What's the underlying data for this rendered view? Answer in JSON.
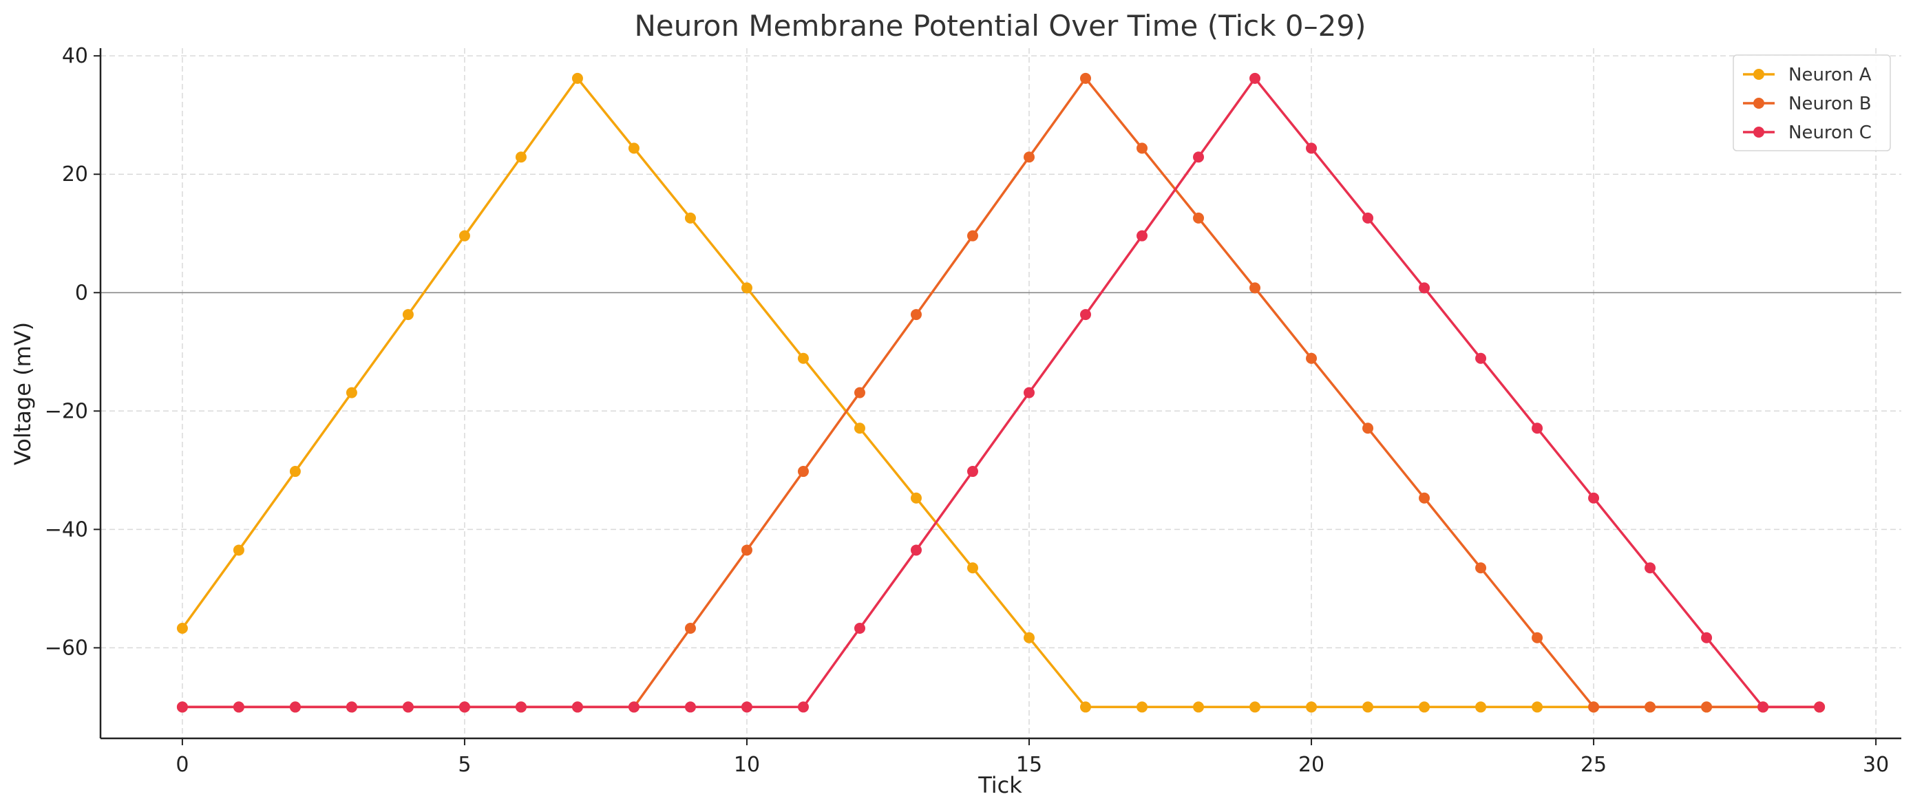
{
  "chart_data": {
    "type": "line",
    "title": "Neuron Membrane Potential Over Time (Tick 0–29)",
    "xlabel": "Tick",
    "ylabel": "Voltage (mV)",
    "xlim": [
      -1.45,
      30.45
    ],
    "ylim": [
      -75.3,
      41.3
    ],
    "x_ticks": [
      0,
      5,
      10,
      15,
      20,
      25,
      30
    ],
    "y_ticks": [
      -60,
      -40,
      -20,
      0,
      20,
      40
    ],
    "x_tick_labels": [
      "0",
      "5",
      "10",
      "15",
      "20",
      "25",
      "30"
    ],
    "y_tick_labels": [
      "−60",
      "−40",
      "−20",
      "0",
      "20",
      "40"
    ],
    "grid": true,
    "zero_line": true,
    "legend_position": "top-right",
    "x": [
      0,
      1,
      2,
      3,
      4,
      5,
      6,
      7,
      8,
      9,
      10,
      11,
      12,
      13,
      14,
      15,
      16,
      17,
      18,
      19,
      20,
      21,
      22,
      23,
      24,
      25,
      26,
      27,
      28,
      29
    ],
    "series": [
      {
        "name": "Neuron A",
        "color": "#f5a50c",
        "values": [
          -56.7,
          -43.5,
          -30.2,
          -16.9,
          -3.7,
          9.6,
          22.9,
          36.2,
          24.4,
          12.6,
          0.8,
          -11.1,
          -22.9,
          -34.7,
          -46.5,
          -58.3,
          -70,
          -70,
          -70,
          -70,
          -70,
          -70,
          -70,
          -70,
          -70,
          -70,
          -70,
          -70,
          -70,
          -70
        ]
      },
      {
        "name": "Neuron B",
        "color": "#eb6424",
        "values": [
          -70,
          -70,
          -70,
          -70,
          -70,
          -70,
          -70,
          -70,
          -70,
          -56.7,
          -43.5,
          -30.2,
          -16.9,
          -3.7,
          9.6,
          22.9,
          36.2,
          24.4,
          12.6,
          0.8,
          -11.1,
          -22.9,
          -34.7,
          -46.5,
          -58.3,
          -70,
          -70,
          -70,
          -70,
          -70
        ]
      },
      {
        "name": "Neuron C",
        "color": "#e8304f",
        "values": [
          -70,
          -70,
          -70,
          -70,
          -70,
          -70,
          -70,
          -70,
          -70,
          -70,
          -70,
          -70,
          -56.7,
          -43.5,
          -30.2,
          -16.9,
          -3.7,
          9.6,
          22.9,
          36.2,
          24.4,
          12.6,
          0.8,
          -11.1,
          -22.9,
          -34.7,
          -46.5,
          -58.3,
          -70,
          -70
        ]
      }
    ]
  }
}
